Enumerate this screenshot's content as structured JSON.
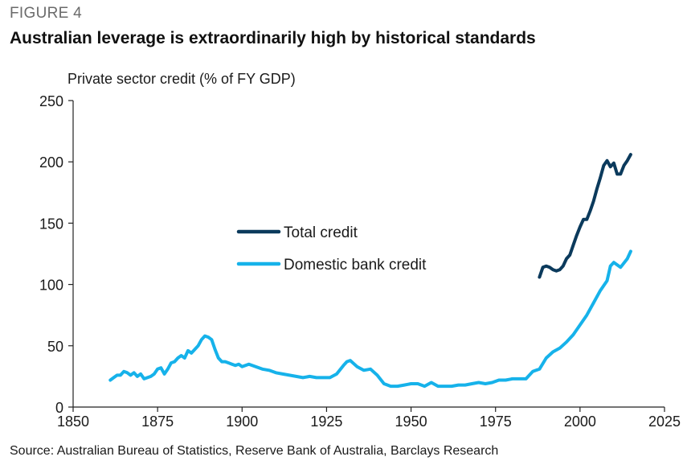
{
  "figure_label": "FIGURE 4",
  "title": "Australian leverage is extraordinarily high by historical standards",
  "source": "Source: Australian Bureau of Statistics, Reserve Bank of Australia, Barclays Research",
  "chart_data": {
    "type": "line",
    "title": "Australian leverage is extraordinarily high by historical standards",
    "ylabel": "Private sector credit (% of FY GDP)",
    "xlabel": "",
    "xlim": [
      1850,
      2025
    ],
    "ylim": [
      0,
      250
    ],
    "x_ticks": [
      1850,
      1875,
      1900,
      1925,
      1950,
      1975,
      2000,
      2025
    ],
    "y_ticks": [
      0,
      50,
      100,
      150,
      200,
      250
    ],
    "x_tick_labels": [
      "1850",
      "1875",
      "1900",
      "1925",
      "1950",
      "1975",
      "2000",
      "2025"
    ],
    "y_tick_labels": [
      "0",
      "50",
      "100",
      "150",
      "200",
      "250"
    ],
    "grid": false,
    "legend": "center-left",
    "series": [
      {
        "name": "Total credit",
        "color": "#0b3a5c",
        "x": [
          1988,
          1989,
          1990,
          1991,
          1992,
          1993,
          1994,
          1995,
          1996,
          1997,
          1998,
          1999,
          2000,
          2001,
          2002,
          2003,
          2004,
          2005,
          2006,
          2007,
          2008,
          2009,
          2010,
          2011,
          2012,
          2013,
          2014,
          2015
        ],
        "y": [
          106,
          114,
          115,
          114,
          112,
          111,
          112,
          115,
          121,
          124,
          132,
          140,
          147,
          153,
          153,
          160,
          168,
          178,
          187,
          197,
          201,
          196,
          199,
          190,
          190,
          197,
          201,
          206
        ]
      },
      {
        "name": "Domestic bank credit",
        "color": "#16b2ea",
        "x": [
          1861,
          1862,
          1863,
          1864,
          1865,
          1866,
          1867,
          1868,
          1869,
          1870,
          1871,
          1872,
          1873,
          1874,
          1875,
          1876,
          1877,
          1878,
          1879,
          1880,
          1881,
          1882,
          1883,
          1884,
          1885,
          1886,
          1887,
          1888,
          1889,
          1890,
          1891,
          1892,
          1893,
          1894,
          1895,
          1896,
          1897,
          1898,
          1899,
          1900,
          1902,
          1904,
          1906,
          1908,
          1910,
          1912,
          1914,
          1916,
          1918,
          1920,
          1922,
          1924,
          1926,
          1928,
          1930,
          1931,
          1932,
          1934,
          1936,
          1938,
          1940,
          1942,
          1944,
          1946,
          1948,
          1950,
          1952,
          1954,
          1956,
          1958,
          1960,
          1962,
          1964,
          1966,
          1968,
          1970,
          1972,
          1974,
          1976,
          1978,
          1980,
          1982,
          1984,
          1986,
          1988,
          1990,
          1992,
          1994,
          1996,
          1998,
          2000,
          2002,
          2004,
          2006,
          2008,
          2009,
          2010,
          2012,
          2014,
          2015
        ],
        "y": [
          22,
          24,
          26,
          26,
          29,
          28,
          26,
          28,
          25,
          27,
          23,
          24,
          25,
          27,
          31,
          32,
          27,
          31,
          36,
          37,
          40,
          42,
          40,
          46,
          44,
          47,
          50,
          55,
          58,
          57,
          55,
          47,
          40,
          37,
          37,
          36,
          35,
          34,
          35,
          33,
          35,
          33,
          31,
          30,
          28,
          27,
          26,
          25,
          24,
          25,
          24,
          24,
          24,
          27,
          34,
          37,
          38,
          33,
          30,
          31,
          26,
          19,
          17,
          17,
          18,
          19,
          19,
          17,
          20,
          17,
          17,
          17,
          18,
          18,
          19,
          20,
          19,
          20,
          22,
          22,
          23,
          23,
          23,
          29,
          31,
          40,
          45,
          48,
          53,
          59,
          67,
          75,
          85,
          95,
          103,
          115,
          118,
          114,
          121,
          127
        ]
      }
    ]
  }
}
